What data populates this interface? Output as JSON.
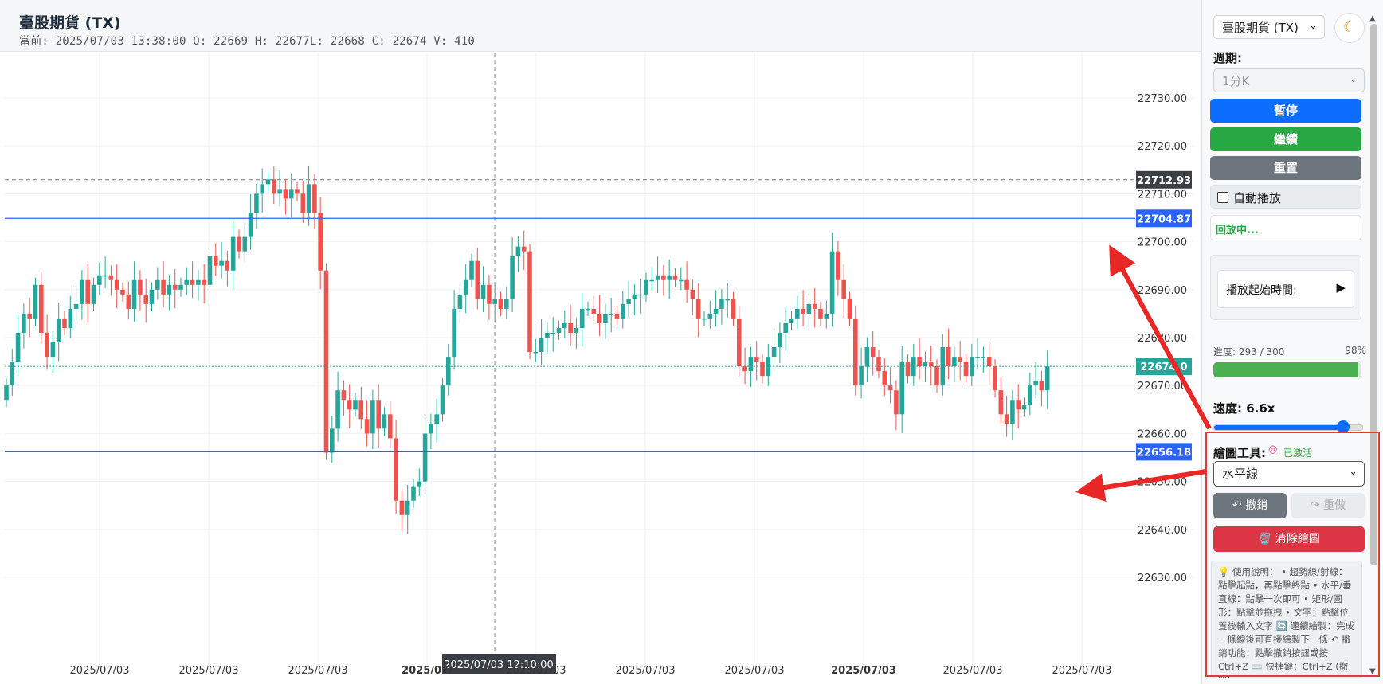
{
  "header": {
    "title": "臺股期貨 (TX)",
    "ohlc": "當前: 2025/07/03 13:38:00 O: 22669 H: 22677L: 22668 C: 22674 V: 410"
  },
  "chart_data": {
    "type": "candlestick",
    "price_axis": {
      "ticks": [
        "22730.00",
        "22720.00",
        "22710.00",
        "22700.00",
        "22690.00",
        "22680.00",
        "22670.00",
        "22660.00",
        "22650.00",
        "22640.00",
        "22630.00"
      ],
      "tick_values": [
        22730,
        22720,
        22710,
        22700,
        22690,
        22680,
        22670,
        22660,
        22650,
        22640,
        22630
      ]
    },
    "time_axis": {
      "labels": [
        "2025/07/03",
        "2025/07/03",
        "2025/07/03",
        "2025/07/",
        "2025/07/03",
        "2025/07/03",
        "2025/07/03",
        "2025/07/03",
        "2025/07/03",
        "2025/07/03"
      ],
      "bold": [
        false,
        false,
        false,
        true,
        false,
        false,
        false,
        true,
        false,
        false
      ]
    },
    "crosshair": {
      "time_label": "2025/07/03 12:10:00",
      "price": 22712.93,
      "price_label": "22712.93"
    },
    "horizontal_lines": [
      {
        "price": 22704.87,
        "label": "22704.87",
        "color": "#2962ff"
      },
      {
        "price": 22656.18,
        "label": "22656.18",
        "color": "#2962ff"
      }
    ],
    "current_price": {
      "price": 22674.0,
      "label": "22674.0",
      "color": "#26a69a"
    },
    "up_color": "#26a69a",
    "down_color": "#ef5350",
    "closes": [
      22670,
      22675,
      22681,
      22685,
      22684,
      22691,
      22681,
      22676,
      22679,
      22684,
      22682,
      22686,
      22687,
      22692,
      22687,
      22691,
      22693,
      22693,
      22692,
      22690,
      22689,
      22686,
      22692,
      22689,
      22687,
      22690,
      22692,
      22689,
      22691,
      22690,
      22691,
      22692,
      22691,
      22692,
      22691,
      22697,
      22695,
      22696,
      22694,
      22701,
      22698,
      22701,
      22706,
      22710,
      22712,
      22713,
      22710,
      22711,
      22709,
      22711,
      22710,
      22706,
      22712,
      22706,
      22694,
      22656,
      22661,
      22669,
      22667,
      22665,
      22667,
      22663,
      22660,
      22667,
      22661,
      22664,
      22659,
      22646,
      22643,
      22646,
      22649,
      22650,
      22660,
      22662,
      22664,
      22670,
      22676,
      22686,
      22689,
      22692,
      22696,
      22688,
      22691,
      22687,
      22688,
      22686,
      22688,
      22697,
      22699,
      22698,
      22677,
      22677,
      22680,
      22681,
      22681,
      22682,
      22683,
      22681,
      22682,
      22686,
      22686,
      22685,
      22683,
      22685,
      22685,
      22684,
      22687,
      22688,
      22689,
      22689,
      22692,
      22692,
      22693,
      22692,
      22693,
      22692,
      22692,
      22690,
      22688,
      22684,
      22684,
      22685,
      22686,
      22688,
      22688,
      22684,
      22674,
      22673,
      22676,
      22675,
      22672,
      22676,
      22678,
      22681,
      22683,
      22684,
      22686,
      22685,
      22687,
      22686,
      22684,
      22685,
      22698,
      22692,
      22688,
      22684,
      22670,
      22674,
      22678,
      22676,
      22673,
      22670,
      22669,
      22664,
      22675,
      22672,
      22676,
      22674,
      22675,
      22674,
      22670,
      22678,
      22674,
      22676,
      22675,
      22672,
      22676,
      22676,
      22676,
      22674,
      22669,
      22664,
      22662,
      22667,
      22665,
      22666,
      22670,
      22671,
      22669,
      22674
    ]
  },
  "panel": {
    "instrument": "臺股期貨 (TX)",
    "theme_icon": "moon-icon",
    "period_label": "週期:",
    "period_value": "1分K",
    "pause_label": "暫停",
    "resume_label": "繼續",
    "reset_label": "重置",
    "autoplay_label": "自動播放",
    "status": "回放中...",
    "start_time_label": "播放起始時間:",
    "progress_label": "進度: 293 / 300",
    "progress_pct": "98%",
    "progress_fraction": 0.98,
    "speed_label": "速度: 6.6x",
    "speed_fraction": 0.87,
    "draw_tool_label": "繪圖工具:",
    "draw_active": "已激活",
    "draw_type": "水平線",
    "undo_label": "↶ 撤銷",
    "redo_label": "↷ 重做",
    "clear_label": "🗑️ 清除繪圖",
    "help_text": "💡 使用說明： • 趨勢線/射線：點擊起點，再點擊終點 • 水平/垂直線：點擊一次即可 • 矩形/圓形：點擊並拖拽 • 文字：點擊位置後輸入文字 🔄 連續繪製：完成一條線後可直接繪製下一條 ↶ 撤銷功能：點擊撤銷按鈕或按 Ctrl+Z ⌨️ 快捷鍵：Ctrl+Z (撤銷)",
    "colors": {
      "primary": "#0d6efd",
      "success": "#28a745",
      "secondary": "#6c757d",
      "danger": "#dc3545"
    }
  }
}
